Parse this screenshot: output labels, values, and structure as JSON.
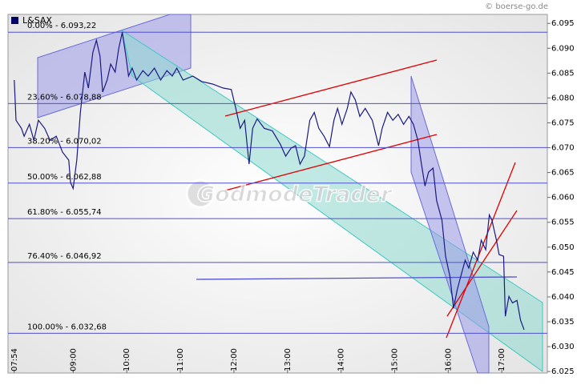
{
  "chart_data": {
    "type": "line",
    "source": "© boerse-go.de",
    "watermark": "GodmodeTrader",
    "series": [
      {
        "name": "L&SAX",
        "color": "#1a1a80",
        "x": [
          "07:54",
          "07:56",
          "08:02",
          "08:05",
          "08:11",
          "08:16",
          "08:21",
          "08:28",
          "08:34",
          "08:41",
          "08:48",
          "08:55",
          "08:57",
          "09:00",
          "09:04",
          "09:08",
          "09:13",
          "09:17",
          "09:22",
          "09:26",
          "09:30",
          "09:33",
          "09:38",
          "09:42",
          "09:47",
          "09:51",
          "09:55",
          "09:59",
          "10:02",
          "10:06",
          "10:11",
          "10:18",
          "10:24",
          "10:31",
          "10:38",
          "10:45",
          "10:51",
          "10:56",
          "11:03",
          "11:14",
          "11:24",
          "11:36",
          "11:48",
          "11:57",
          "12:02",
          "12:07",
          "12:12",
          "12:17",
          "12:21",
          "12:26",
          "12:34",
          "12:43",
          "12:52",
          "12:58",
          "13:04",
          "13:09",
          "13:14",
          "13:19",
          "13:25",
          "13:30",
          "13:35",
          "13:41",
          "13:47",
          "13:52",
          "13:56",
          "14:01",
          "14:07",
          "14:11",
          "14:16",
          "14:21",
          "14:27",
          "14:35",
          "14:42",
          "14:46",
          "14:52",
          "14:58",
          "15:04",
          "15:10",
          "15:16",
          "15:21",
          "15:26",
          "15:30",
          "15:34",
          "15:38",
          "15:43",
          "15:47",
          "15:53",
          "15:57",
          "16:02",
          "16:06",
          "16:10",
          "16:14",
          "16:19",
          "16:23",
          "16:28",
          "16:33",
          "16:37",
          "16:42",
          "16:46",
          "16:49",
          "16:54",
          "16:57",
          "17:02",
          "17:04",
          "17:08",
          "17:12",
          "17:17",
          "17:21",
          "17:25"
        ],
        "values": [
          6.0836,
          6.0755,
          6.0739,
          6.0723,
          6.0747,
          6.0715,
          6.0755,
          6.0739,
          6.0715,
          6.0723,
          6.0691,
          6.0675,
          6.063,
          6.0618,
          6.0675,
          6.0771,
          6.0852,
          6.082,
          6.0892,
          6.0916,
          6.0884,
          6.0812,
          6.0836,
          6.0868,
          6.0852,
          6.09,
          6.0932,
          6.0884,
          6.0844,
          6.086,
          6.0836,
          6.0855,
          6.0844,
          6.086,
          6.0836,
          6.0855,
          6.0844,
          6.086,
          6.0836,
          6.0844,
          6.0833,
          6.0828,
          6.082,
          6.0817,
          6.078,
          6.0739,
          6.0755,
          6.0667,
          6.0739,
          6.0758,
          6.0739,
          6.0734,
          6.0707,
          6.0683,
          6.0699,
          6.0704,
          6.0667,
          6.0683,
          6.0755,
          6.0771,
          6.0739,
          6.0723,
          6.0702,
          6.0755,
          6.0779,
          6.0747,
          6.0779,
          6.0812,
          6.0796,
          6.0763,
          6.0779,
          6.0755,
          6.0704,
          6.0739,
          6.0771,
          6.0755,
          6.0767,
          6.0747,
          6.0763,
          6.0747,
          6.0715,
          6.0667,
          6.0623,
          6.0651,
          6.0659,
          6.0594,
          6.0554,
          6.0482,
          6.0441,
          6.0377,
          6.0414,
          6.0441,
          6.0474,
          6.0458,
          6.049,
          6.0474,
          6.0514,
          6.0495,
          6.0565,
          6.0554,
          6.0514,
          6.0485,
          6.0482,
          6.0361,
          6.0401,
          6.0388,
          6.0393,
          6.0353,
          6.0334
        ]
      }
    ],
    "fib_levels": [
      {
        "value": 6.09322,
        "label": "0.00% - 6.093,22"
      },
      {
        "value": 6.07888,
        "label": "23.60% - 6.078,88"
      },
      {
        "value": 6.07002,
        "label": "38.20% - 6.070,02"
      },
      {
        "value": 6.06288,
        "label": "50.00% - 6.062,88"
      },
      {
        "value": 6.05574,
        "label": "61.80% - 6.055,74"
      },
      {
        "value": 6.04692,
        "label": "76.40% - 6.046,92"
      },
      {
        "value": 6.03268,
        "label": "100.00% - 6.032,68"
      }
    ],
    "fib_color": "#5050d0",
    "xlim": [
      "07:47",
      "17:51"
    ],
    "xticks": [
      "07:54",
      "09:00",
      "10:00",
      "11:00",
      "12:00",
      "13:00",
      "14:00",
      "15:00",
      "16:00",
      "17:00"
    ],
    "ylim": [
      6.0247,
      6.0968
    ],
    "yticks": [
      6.025,
      {
        "value": 6.03,
        "label": "6.030"
      },
      6.035,
      {
        "value": 6.04,
        "label": "6.040"
      },
      6.045,
      {
        "value": 6.05,
        "label": "6.050"
      },
      6.055,
      {
        "value": 6.06,
        "label": "6.060"
      },
      6.065,
      {
        "value": 6.07,
        "label": "6.070"
      },
      6.075,
      {
        "value": 6.08,
        "label": "6.080"
      },
      6.085,
      {
        "value": 6.09,
        "label": "6.090"
      },
      6.095
    ],
    "legend": "top-left"
  }
}
